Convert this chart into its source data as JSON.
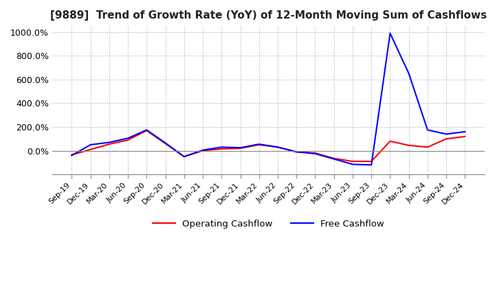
{
  "title": "[9889]  Trend of Growth Rate (YoY) of 12-Month Moving Sum of Cashflows",
  "title_fontsize": 11,
  "background_color": "#ffffff",
  "grid_color": "#aaaacc",
  "ylim": [
    -200,
    1050
  ],
  "yticks": [
    0,
    200,
    400,
    600,
    800,
    1000
  ],
  "ytick_labels": [
    "0.0%",
    "200.0%",
    "400.0%",
    "600.0%",
    "800.0%",
    "1000.0%"
  ],
  "x_labels": [
    "Sep-19",
    "Dec-19",
    "Mar-20",
    "Jun-20",
    "Sep-20",
    "Dec-20",
    "Mar-21",
    "Jun-21",
    "Sep-21",
    "Dec-21",
    "Mar-22",
    "Jun-22",
    "Sep-22",
    "Dec-22",
    "Mar-23",
    "Jun-23",
    "Sep-23",
    "Dec-23",
    "Mar-24",
    "Jun-24",
    "Sep-24",
    "Dec-24"
  ],
  "operating_cashflow": [
    -35,
    10,
    55,
    90,
    170,
    60,
    -50,
    0,
    15,
    20,
    50,
    30,
    -10,
    -20,
    -65,
    -90,
    -90,
    80,
    45,
    30,
    100,
    120
  ],
  "free_cashflow": [
    -40,
    50,
    70,
    105,
    175,
    65,
    -50,
    5,
    30,
    25,
    55,
    30,
    -10,
    -25,
    -70,
    -115,
    -120,
    990,
    650,
    175,
    140,
    160
  ],
  "op_color": "#ff0000",
  "free_color": "#0000ff",
  "legend_labels": [
    "Operating Cashflow",
    "Free Cashflow"
  ]
}
